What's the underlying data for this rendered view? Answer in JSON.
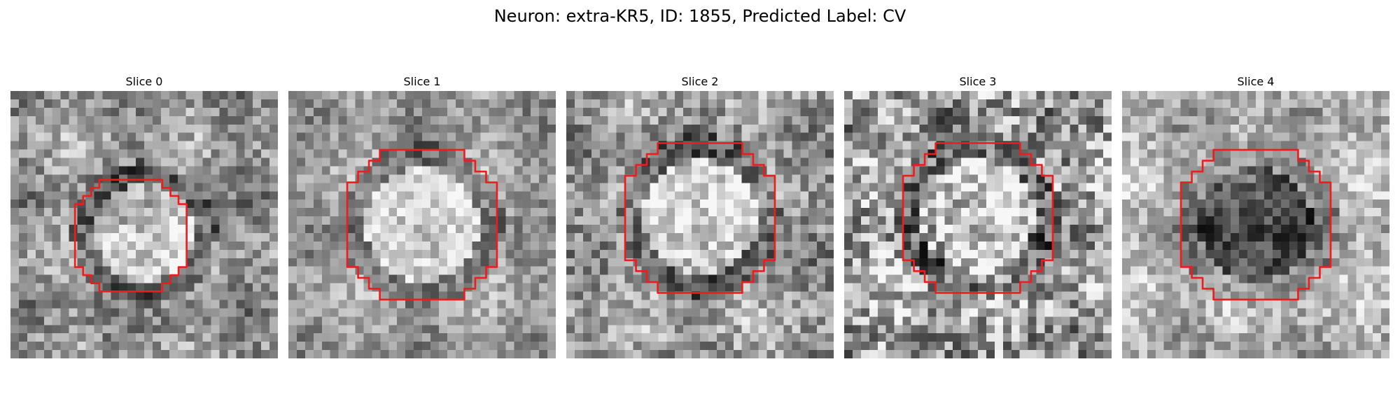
{
  "figure": {
    "title": "Neuron: extra-KR5, ID: 1855, Predicted Label: CV"
  },
  "panels": [
    {
      "title": "Slice 0",
      "seed": 11,
      "base": 0.58,
      "disk": 0.78,
      "ring": 0.36,
      "noise": 0.22
    },
    {
      "title": "Slice 1",
      "seed": 23,
      "base": 0.62,
      "disk": 0.86,
      "ring": 0.44,
      "noise": 0.18
    },
    {
      "title": "Slice 2",
      "seed": 37,
      "base": 0.6,
      "disk": 0.84,
      "ring": 0.4,
      "noise": 0.24
    },
    {
      "title": "Slice 3",
      "seed": 41,
      "base": 0.62,
      "disk": 0.8,
      "ring": 0.42,
      "noise": 0.34
    },
    {
      "title": "Slice 4",
      "seed": 59,
      "base": 0.7,
      "disk": 0.3,
      "ring": 0.55,
      "noise": 0.2
    }
  ],
  "colors": {
    "contour": "#ee1c1c",
    "background": "#ffffff"
  }
}
